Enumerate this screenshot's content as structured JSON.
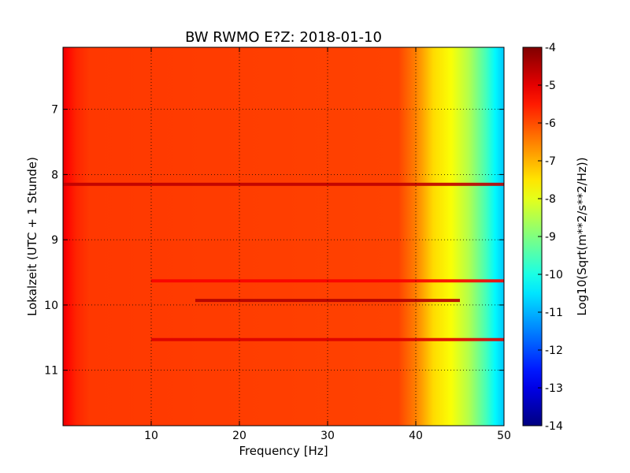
{
  "chart_data": {
    "type": "heatmap",
    "title": "BW RWMO E?Z: 2018-01-10",
    "xlabel": "Frequency [Hz]",
    "ylabel": "Lokalzeit (UTC + 1 Stunde)",
    "colorbar_label": "Log10(Sqrt(m**2/s**2/Hz))",
    "colormap": "jet",
    "xlim": [
      0,
      50
    ],
    "ylim": [
      11.85,
      6.05
    ],
    "y_inverted": true,
    "grid": true,
    "grid_style": "dotted",
    "clim": [
      -14,
      -4
    ],
    "x_ticks": [
      10,
      20,
      30,
      40,
      50
    ],
    "y_ticks": [
      7,
      8,
      9,
      10,
      11
    ],
    "colorbar_ticks": [
      -4,
      -5,
      -6,
      -7,
      -8,
      -9,
      -10,
      -11,
      -12,
      -13,
      -14
    ],
    "spectrum_profile": [
      {
        "freq": 0,
        "value": -5.0
      },
      {
        "freq": 0.5,
        "value": -5.3
      },
      {
        "freq": 1.5,
        "value": -5.6
      },
      {
        "freq": 3,
        "value": -5.8
      },
      {
        "freq": 38,
        "value": -5.9
      },
      {
        "freq": 40,
        "value": -6.5
      },
      {
        "freq": 42,
        "value": -7.4
      },
      {
        "freq": 44,
        "value": -7.8
      },
      {
        "freq": 46,
        "value": -8.5
      },
      {
        "freq": 48,
        "value": -9.6
      },
      {
        "freq": 49,
        "value": -10.3
      },
      {
        "freq": 50,
        "value": -10.8
      }
    ],
    "horizontal_bands": [
      {
        "time": 8.15,
        "freq_start": 0,
        "freq_end": 50,
        "value": -4.6
      },
      {
        "time": 9.63,
        "freq_start": 10,
        "freq_end": 50,
        "value": -5.2
      },
      {
        "time": 9.93,
        "freq_start": 15,
        "freq_end": 45,
        "value": -4.5
      },
      {
        "time": 10.53,
        "freq_start": 10,
        "freq_end": 50,
        "value": -4.9
      }
    ]
  }
}
